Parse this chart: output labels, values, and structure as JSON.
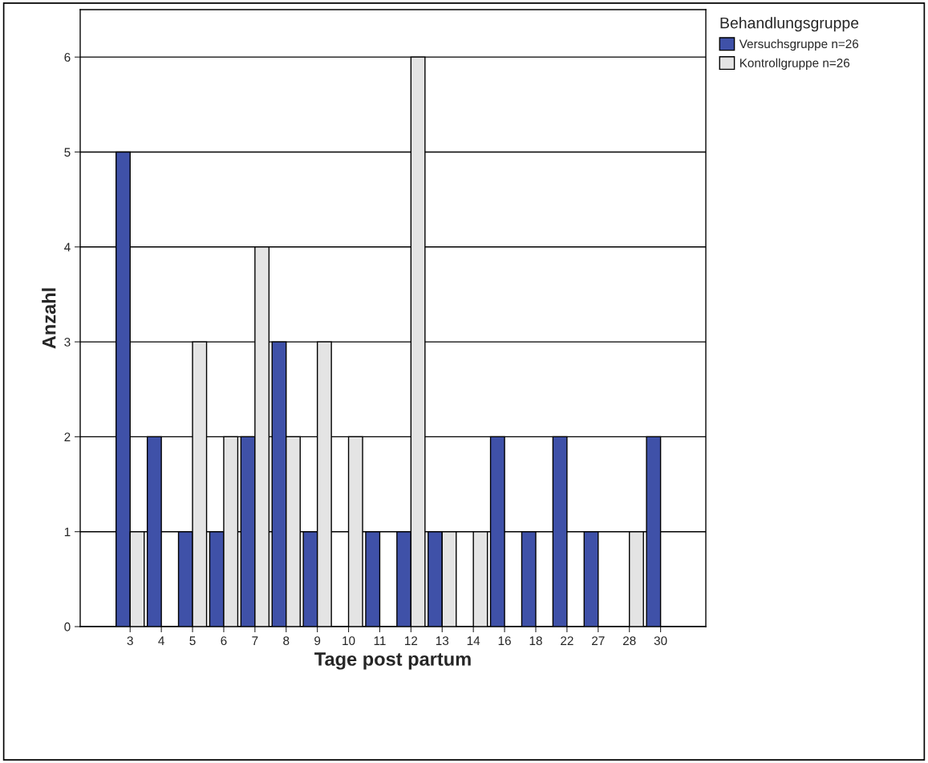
{
  "chart_data": {
    "type": "bar",
    "xlabel": "Tage post partum",
    "ylabel": "Anzahl",
    "legend_title": "Behandlungsgruppe",
    "categories": [
      "3",
      "4",
      "5",
      "6",
      "7",
      "8",
      "9",
      "10",
      "11",
      "12",
      "13",
      "14",
      "16",
      "18",
      "22",
      "27",
      "28",
      "30"
    ],
    "series": [
      {
        "name": "Versuchsgruppe n=26",
        "color": "#3f51a8",
        "values": [
          5,
          2,
          1,
          1,
          2,
          3,
          1,
          null,
          1,
          1,
          1,
          null,
          2,
          1,
          2,
          1,
          null,
          2
        ]
      },
      {
        "name": "Kontrollgruppe n=26",
        "color": "#e4e4e4",
        "values": [
          1,
          null,
          3,
          2,
          4,
          2,
          3,
          2,
          null,
          6,
          1,
          1,
          null,
          null,
          null,
          null,
          1,
          null
        ]
      }
    ],
    "ylim": [
      0,
      6.5
    ],
    "yticks": [
      0,
      1,
      2,
      3,
      4,
      5,
      6
    ],
    "grid": "y",
    "legend": "top right"
  }
}
